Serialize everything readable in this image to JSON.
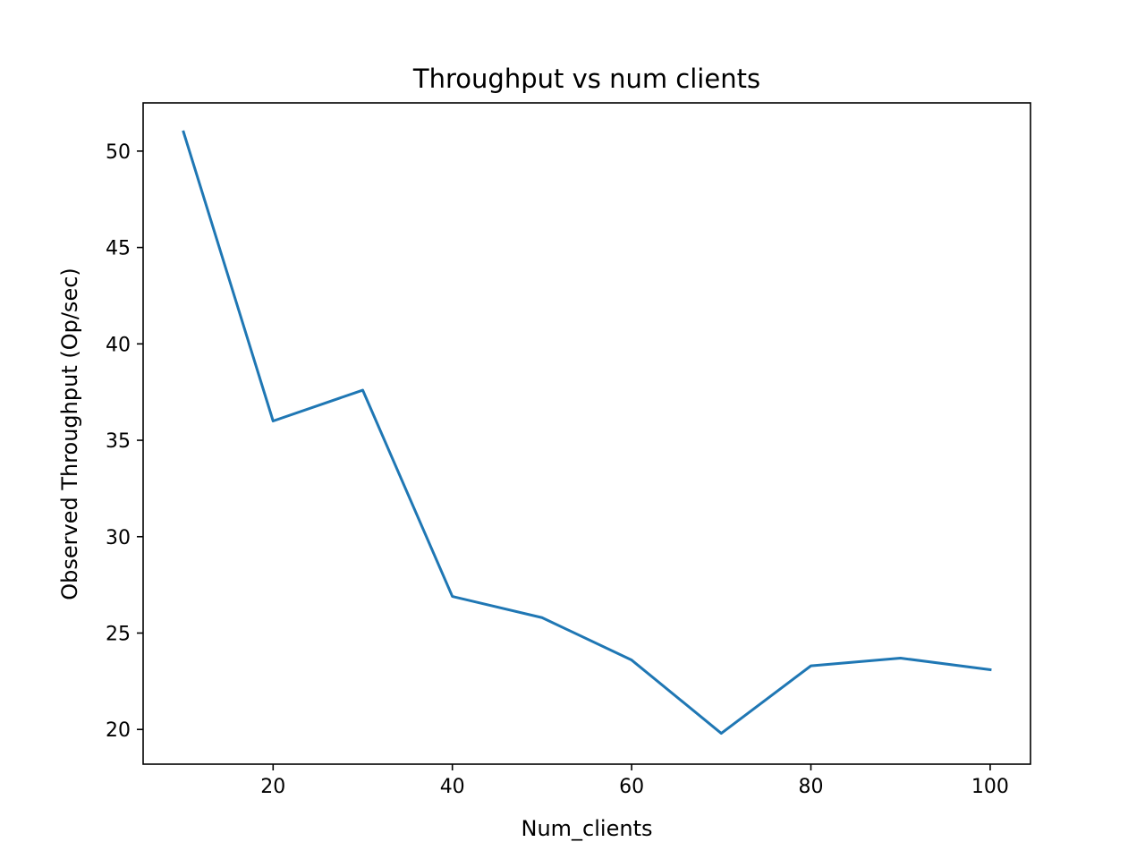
{
  "chart_data": {
    "type": "line",
    "title": "Throughput vs num clients",
    "xlabel": "Num_clients",
    "ylabel": "Observed Throughput (Op/sec)",
    "xlim": [
      5.5,
      104.5
    ],
    "ylim": [
      18.2,
      52.5
    ],
    "x_ticks": [
      20,
      40,
      60,
      80,
      100
    ],
    "y_ticks": [
      20,
      25,
      30,
      35,
      40,
      45,
      50
    ],
    "grid": false,
    "series": [
      {
        "color": "#1f77b4",
        "x": [
          10,
          20,
          30,
          40,
          50,
          60,
          70,
          80,
          90,
          100
        ],
        "y": [
          51.0,
          36.0,
          37.6,
          26.9,
          25.8,
          23.6,
          19.8,
          23.3,
          23.7,
          23.1
        ]
      }
    ]
  }
}
